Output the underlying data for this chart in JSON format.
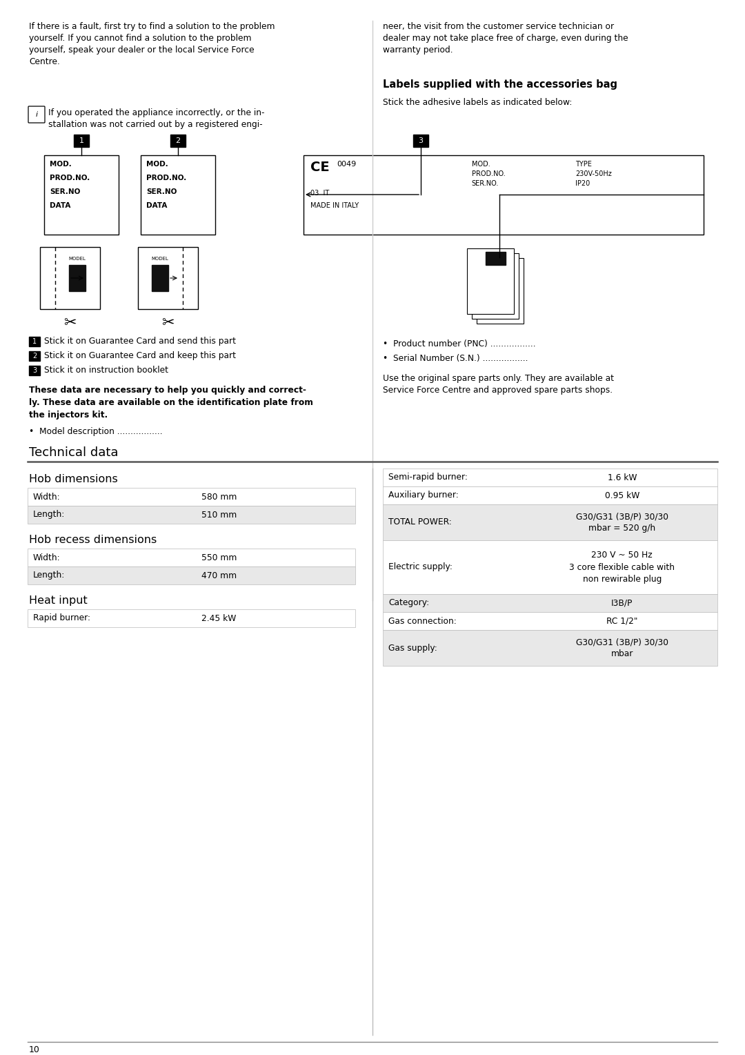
{
  "bg_color": "#ffffff",
  "page_number": "10",
  "top_text_left": "If there is a fault, first try to find a solution to the problem\nyourself. If you cannot find a solution to the problem\nyourself, speak your dealer or the local Service Force\nCentre.",
  "info_text": "If you operated the appliance incorrectly, or the in-\nstallation was not carried out by a registered engi-",
  "top_text_right": "neer, the visit from the customer service technician or\ndealer may not take place free of charge, even during the\nwarranty period.",
  "labels_heading": "Labels supplied with the accessories bag",
  "labels_subtext": "Stick the adhesive labels as indicated below:",
  "numbered_items_left": [
    [
      "1",
      "Stick it on Guarantee Card and send this part"
    ],
    [
      "2",
      "Stick it on Guarantee Card and keep this part"
    ],
    [
      "3",
      "Stick it on instruction booklet"
    ]
  ],
  "bold_para_lines": [
    "These data are necessary to help you quickly and correct-",
    "ly. These data are available on the identification plate from",
    "the injectors kit."
  ],
  "bullet_left": "Model description .................",
  "bullet_right1": "Product number (PNC) .................",
  "bullet_right2": "Serial Number (S.N.) .................",
  "right_para": "Use the original spare parts only. They are available at\nService Force Centre and approved spare parts shops.",
  "tech_data_heading": "Technical data",
  "hob_dim_heading": "Hob dimensions",
  "hob_dim_rows": [
    [
      "Width:",
      "580 mm",
      "#ffffff"
    ],
    [
      "Length:",
      "510 mm",
      "#e8e8e8"
    ]
  ],
  "hob_recess_heading": "Hob recess dimensions",
  "hob_recess_rows": [
    [
      "Width:",
      "550 mm",
      "#ffffff"
    ],
    [
      "Length:",
      "470 mm",
      "#e8e8e8"
    ]
  ],
  "heat_input_heading": "Heat input",
  "heat_input_rows": [
    [
      "Rapid burner:",
      "2.45 kW",
      "#ffffff"
    ]
  ],
  "right_table_rows": [
    [
      "Semi-rapid burner:",
      "1.6 kW",
      "#ffffff"
    ],
    [
      "Auxiliary burner:",
      "0.95 kW",
      "#ffffff"
    ],
    [
      "TOTAL POWER:",
      "G30/G31 (3B/P) 30/30\nmbar = 520 g/h",
      "#e8e8e8"
    ],
    [
      "Electric supply:",
      "230 V ~ 50 Hz\n3 core flexible cable with\nnon rewirable plug",
      "#ffffff"
    ],
    [
      "Category:",
      "I3B/P",
      "#e8e8e8"
    ],
    [
      "Gas connection:",
      "RC 1/2\"",
      "#ffffff"
    ],
    [
      "Gas supply:",
      "G30/G31 (3B/P) 30/30\nmbar",
      "#e8e8e8"
    ]
  ]
}
